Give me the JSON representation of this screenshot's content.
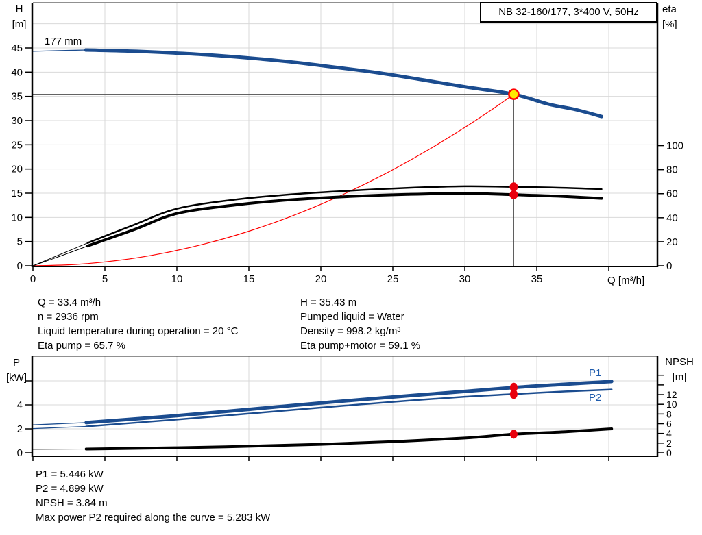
{
  "colors": {
    "curve_blue": "#1b4c8f",
    "curve_black": "#000000",
    "curve_red": "#ff0000",
    "marker_red": "#e8000d",
    "marker_yellow": "#ffe800",
    "grid": "#d9d9d9",
    "axis": "#000000",
    "crosshair": "#4d4d4d",
    "label_blue": "#1f5cad"
  },
  "info_blocks": {
    "top_left": [
      "Q = 33.4 m³/h",
      "n = 2936 rpm",
      "Liquid temperature during operation = 20 °C",
      "Eta pump = 65.7 %"
    ],
    "top_right": [
      "H = 35.43 m",
      "Pumped liquid = Water",
      "Density = 998.2 kg/m³",
      "Eta pump+motor = 59.1 %"
    ],
    "bottom": [
      "P1 = 5.446 kW",
      "P2 = 4.899 kW",
      "NPSH = 3.84 m",
      "Max power P2 required along the curve = 5.283 kW"
    ]
  },
  "chart_data": [
    {
      "type": "line",
      "title": "NB 32-160/177, 3*400 V, 50Hz",
      "xlabel": "Q [m³/h]",
      "ylabel_left": [
        "H",
        "[m]"
      ],
      "ylabel_right": [
        "eta",
        "[%]"
      ],
      "xlim": [
        0,
        43.3
      ],
      "ylim_left": [
        0,
        54
      ],
      "ylim_right": [
        0,
        219
      ],
      "grid": true,
      "legend_position": "none",
      "x_ticks": [
        0,
        5,
        10,
        15,
        20,
        25,
        30,
        35,
        40
      ],
      "x_tick_labels": [
        "0",
        "5",
        "10",
        "15",
        "20",
        "25",
        "30",
        "35",
        ""
      ],
      "y_ticks_left": [
        0,
        5,
        10,
        15,
        20,
        25,
        30,
        35,
        40,
        45
      ],
      "y_tick_labels_left": [
        "0",
        "5",
        "10",
        "15",
        "20",
        "25",
        "30",
        "35",
        "40",
        "45"
      ],
      "y_grid_left": [
        5,
        10,
        15,
        20,
        25,
        30,
        35,
        40,
        45,
        50
      ],
      "y_ticks_right": [
        0,
        20,
        40,
        60,
        80,
        100
      ],
      "y_tick_labels_right": [
        "0",
        "20",
        "40",
        "60",
        "80",
        "100"
      ],
      "annotations": [
        {
          "text": "177 mm",
          "q": 0.9,
          "h": 46.8
        }
      ],
      "duty_point": {
        "q": 33.4,
        "h": 35.43
      },
      "eta_points": [
        {
          "q": 33.4,
          "eta": 65.7
        },
        {
          "q": 33.4,
          "eta": 59.1
        }
      ],
      "crosshair": {
        "q": 33.4,
        "h": 35.43
      },
      "series": [
        {
          "name": "head-lead",
          "axis": "left",
          "color": "curve_blue",
          "width": 1.3,
          "points": [
            [
              0,
              44.3
            ],
            [
              1.8,
              44.45
            ],
            [
              3.67,
              44.57
            ]
          ]
        },
        {
          "name": "affinity-parabola",
          "axis": "left",
          "color": "curve_red",
          "width": 1.2,
          "points": [
            [
              0,
              0
            ],
            [
              3,
              0.29
            ],
            [
              6,
              1.14
            ],
            [
              9,
              2.57
            ],
            [
              12,
              4.57
            ],
            [
              15,
              7.14
            ],
            [
              18,
              10.29
            ],
            [
              21,
              14.0
            ],
            [
              24,
              18.29
            ],
            [
              27,
              23.15
            ],
            [
              30,
              28.58
            ],
            [
              32,
              32.52
            ],
            [
              33.4,
              35.43
            ]
          ]
        },
        {
          "name": "eta-pump-lead",
          "axis": "right",
          "color": "curve_black",
          "width": 1,
          "points": [
            [
              0,
              0
            ],
            [
              2,
              10
            ],
            [
              3.8,
              19
            ]
          ]
        },
        {
          "name": "eta-pump-motor-lead",
          "axis": "right",
          "color": "curve_black",
          "width": 1,
          "points": [
            [
              0,
              0
            ],
            [
              2,
              8.5
            ],
            [
              3.8,
              16.5
            ]
          ]
        },
        {
          "name": "eta-pump",
          "axis": "right",
          "color": "curve_black",
          "width": 2.5,
          "points": [
            [
              3.8,
              19
            ],
            [
              7,
              34
            ],
            [
              10,
              47.5
            ],
            [
              14,
              55
            ],
            [
              18,
              59.5
            ],
            [
              22,
              62.5
            ],
            [
              26,
              64.8
            ],
            [
              30,
              66.2
            ],
            [
              33.4,
              65.7
            ],
            [
              36.5,
              65.0
            ],
            [
              39.5,
              63.8
            ]
          ]
        },
        {
          "name": "eta-pump-motor",
          "axis": "right",
          "color": "curve_black",
          "width": 4,
          "points": [
            [
              3.8,
              16.5
            ],
            [
              7,
              30
            ],
            [
              10,
              43.5
            ],
            [
              14,
              50.5
            ],
            [
              18,
              55
            ],
            [
              22,
              57.7
            ],
            [
              26,
              59.4
            ],
            [
              30,
              60.2
            ],
            [
              33.4,
              59.1
            ],
            [
              36.5,
              57.9
            ],
            [
              39.5,
              56.1
            ]
          ]
        },
        {
          "name": "head",
          "axis": "left",
          "color": "curve_blue",
          "width": 5,
          "points": [
            [
              3.67,
              44.57
            ],
            [
              7.2,
              44.3
            ],
            [
              12,
              43.6
            ],
            [
              16.8,
              42.45
            ],
            [
              20.2,
              41.3
            ],
            [
              23.9,
              39.9
            ],
            [
              27.2,
              38.35
            ],
            [
              30.1,
              36.93
            ],
            [
              33.4,
              35.43
            ],
            [
              35.8,
              33.4
            ],
            [
              37.7,
              32.26
            ],
            [
              39.5,
              30.84
            ]
          ]
        }
      ]
    },
    {
      "type": "line",
      "title": "",
      "xlabel": "",
      "ylabel_left": [
        "P",
        "[kW]"
      ],
      "ylabel_right": [
        "NPSH",
        "[m]"
      ],
      "xlim": [
        0,
        43.3
      ],
      "ylim_left": [
        0,
        8.1
      ],
      "ylim_right": [
        0,
        20
      ],
      "grid": true,
      "legend_position": "inline",
      "x_ticks": [
        0,
        5,
        10,
        15,
        20,
        25,
        30,
        35,
        40
      ],
      "x_tick_labels": [
        "",
        "",
        "",
        "",
        "",
        "",
        "",
        "",
        ""
      ],
      "y_ticks_left": [
        0,
        2,
        4,
        6
      ],
      "y_tick_labels_left": [
        "0",
        "2",
        "4",
        ""
      ],
      "y_grid_left": [
        2,
        4,
        6
      ],
      "y_ticks_right": [
        0,
        2,
        4,
        6,
        8,
        10,
        12,
        14,
        16
      ],
      "y_tick_labels_right": [
        "0",
        "2",
        "4",
        "6",
        "8",
        "10",
        "12",
        "",
        ""
      ],
      "series_labels": [
        {
          "text": "P1"
        },
        {
          "text": "P2"
        }
      ],
      "power_points": [
        {
          "q": 33.4,
          "p": 5.446
        },
        {
          "q": 33.4,
          "p": 4.899
        }
      ],
      "npsh_point": {
        "q": 33.4,
        "npsh": 3.84
      },
      "series": [
        {
          "name": "p1-lead",
          "axis": "left",
          "color": "curve_blue",
          "width": 1.3,
          "points": [
            [
              0,
              2.33
            ],
            [
              3.7,
              2.52
            ]
          ]
        },
        {
          "name": "p2-lead",
          "axis": "left",
          "color": "curve_blue",
          "width": 1.2,
          "points": [
            [
              0,
              2.02
            ],
            [
              3.7,
              2.2
            ]
          ]
        },
        {
          "name": "npsh-lead",
          "axis": "right",
          "color": "curve_black",
          "width": 1,
          "points": [
            [
              0,
              0.72
            ],
            [
              3.7,
              0.78
            ]
          ]
        },
        {
          "name": "npsh",
          "axis": "right",
          "color": "curve_black",
          "width": 4,
          "points": [
            [
              3.7,
              0.78
            ],
            [
              10,
              1.05
            ],
            [
              15,
              1.35
            ],
            [
              20,
              1.75
            ],
            [
              25,
              2.3
            ],
            [
              30,
              3.05
            ],
            [
              33.4,
              3.84
            ],
            [
              37,
              4.35
            ],
            [
              40.2,
              4.95
            ]
          ]
        },
        {
          "name": "p2",
          "axis": "left",
          "color": "curve_blue",
          "width": 2.5,
          "points": [
            [
              3.7,
              2.2
            ],
            [
              10,
              2.78
            ],
            [
              15,
              3.27
            ],
            [
              20,
              3.77
            ],
            [
              25,
              4.25
            ],
            [
              30,
              4.68
            ],
            [
              33.4,
              4.899
            ],
            [
              37,
              5.12
            ],
            [
              40.2,
              5.28
            ]
          ]
        },
        {
          "name": "p1",
          "axis": "left",
          "color": "curve_blue",
          "width": 5,
          "points": [
            [
              3.7,
              2.52
            ],
            [
              10,
              3.1
            ],
            [
              15,
              3.62
            ],
            [
              20,
              4.16
            ],
            [
              25,
              4.66
            ],
            [
              30,
              5.12
            ],
            [
              33.4,
              5.446
            ],
            [
              37,
              5.72
            ],
            [
              40.2,
              5.95
            ]
          ]
        }
      ]
    }
  ]
}
